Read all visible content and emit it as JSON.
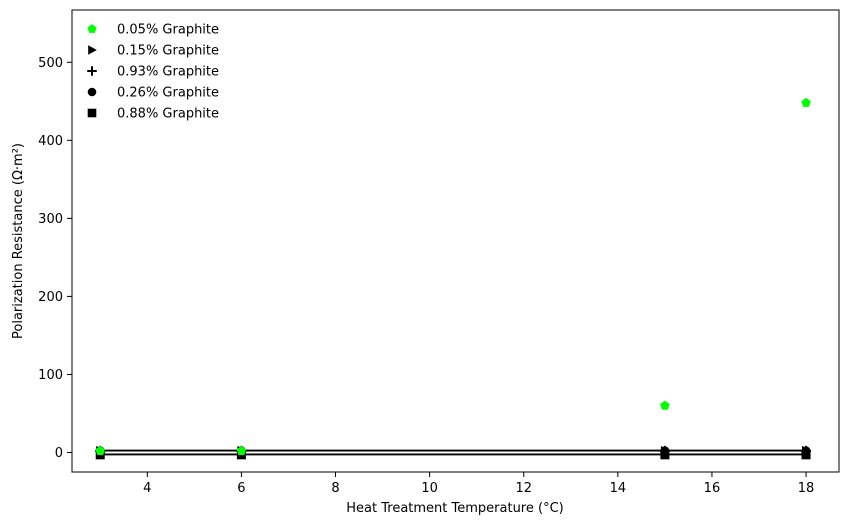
{
  "chart_data": {
    "type": "scatter",
    "title": "",
    "xlabel": "Heat Treatment Temperature (°C)",
    "ylabel": "Polarization Resistance (Ω·m²)",
    "xlim": [
      2.4,
      18.7
    ],
    "ylim": [
      -25,
      567
    ],
    "xticks": [
      4,
      6,
      8,
      10,
      12,
      14,
      16,
      18
    ],
    "yticks": [
      0,
      100,
      200,
      300,
      400,
      500
    ],
    "grid": false,
    "legend_position": "top-left",
    "series": [
      {
        "name": "0.05% Graphite",
        "marker": "pentagon",
        "color": "#00ff00",
        "x": [
          3,
          6,
          15,
          18
        ],
        "y": [
          2,
          2,
          60,
          448
        ]
      },
      {
        "name": "0.15% Graphite",
        "marker": "triangle-right",
        "color": "#000000",
        "x": [
          3,
          6,
          15,
          18
        ],
        "y": [
          2,
          2,
          2,
          2
        ]
      },
      {
        "name": "0.93% Graphite",
        "marker": "plus",
        "color": "#000000",
        "x": [
          3,
          6,
          15,
          18
        ],
        "y": [
          2,
          2,
          2,
          2
        ]
      },
      {
        "name": "0.26% Graphite",
        "marker": "circle",
        "color": "#000000",
        "x": [
          3,
          6,
          15,
          18
        ],
        "y": [
          2,
          2,
          2,
          2
        ]
      },
      {
        "name": "0.88% Graphite",
        "marker": "square",
        "color": "#000000",
        "x": [
          3,
          6,
          15,
          18
        ],
        "y": [
          -3,
          -3,
          -3,
          -3
        ]
      }
    ],
    "lines": [
      {
        "color": "#000000",
        "x": [
          3,
          18
        ],
        "y": [
          2.5,
          2.5
        ]
      },
      {
        "color": "#000000",
        "x": [
          3,
          18
        ],
        "y": [
          -2.5,
          -2.5
        ]
      }
    ]
  }
}
